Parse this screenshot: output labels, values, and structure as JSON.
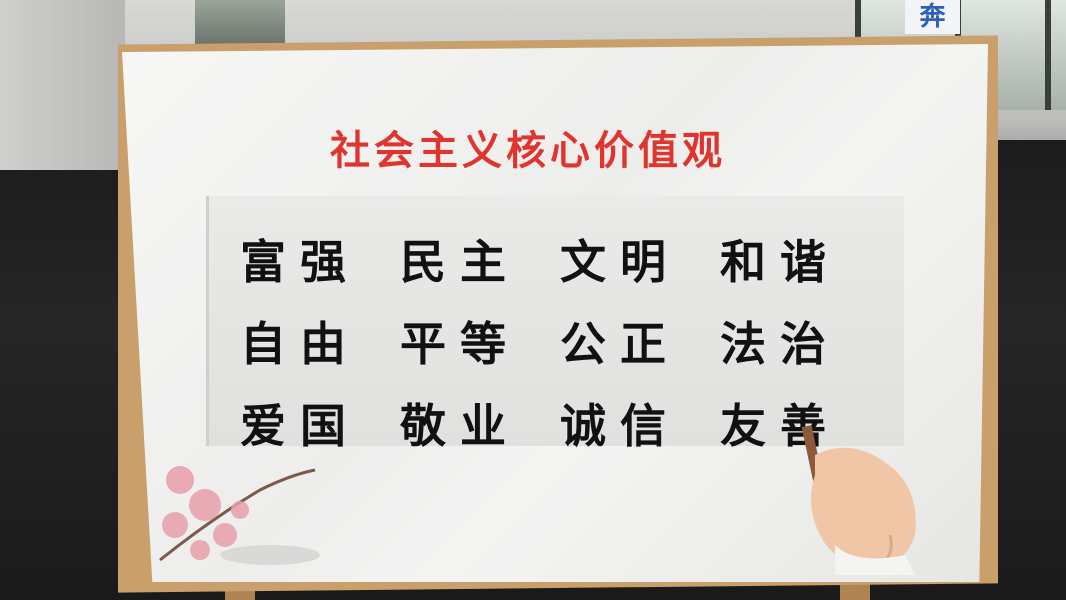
{
  "background_sign": {
    "char": "奔"
  },
  "board": {
    "title": "社会主义核心价值观",
    "rows": [
      [
        "富强",
        "民主",
        "文明",
        "和谐"
      ],
      [
        "自由",
        "平等",
        "公正",
        "法治"
      ],
      [
        "爱国",
        "敬业",
        "诚信",
        "友善"
      ]
    ]
  },
  "colors": {
    "title": "#e0342f",
    "text": "#111111",
    "easel": "#b08452"
  }
}
